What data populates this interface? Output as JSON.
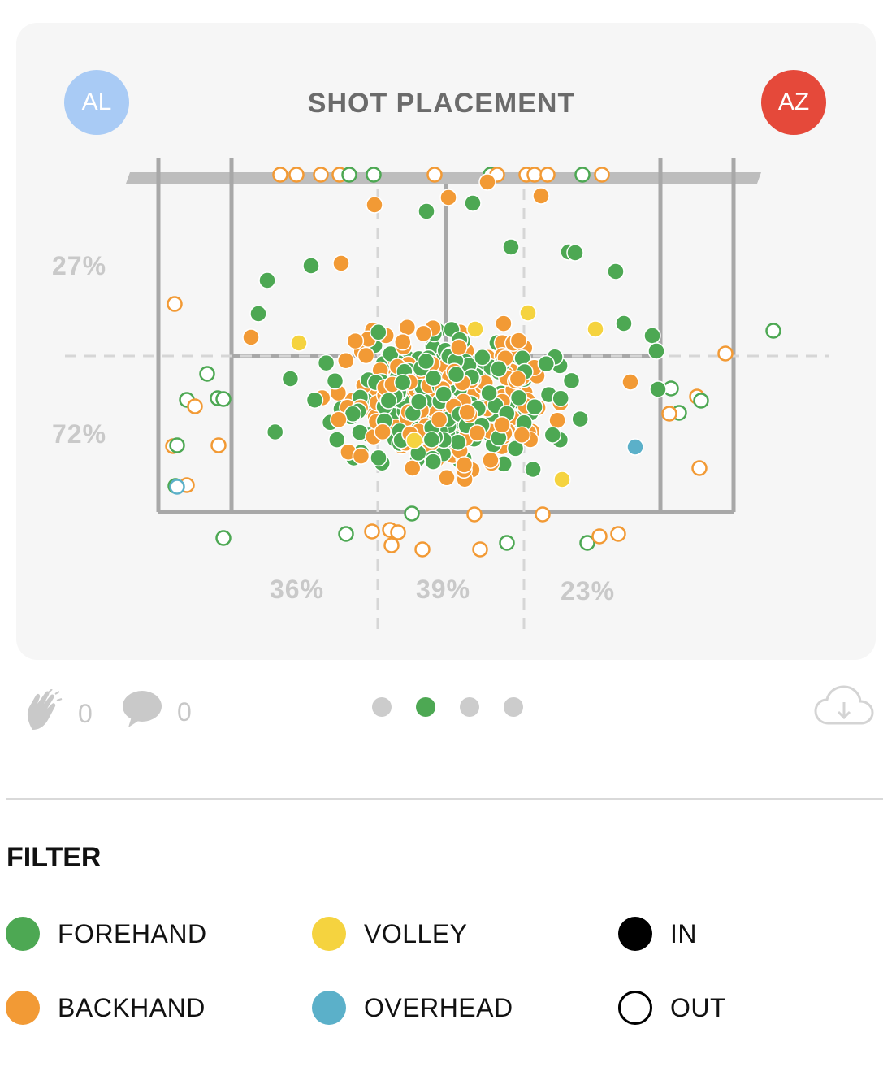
{
  "header": {
    "title": "SHOT PLACEMENT",
    "left_player": "AL",
    "right_player": "AZ",
    "left_color": "#a9cbf5",
    "right_color": "#e5493a"
  },
  "court": {
    "depth_percentages": [
      "27%",
      "72%"
    ],
    "width_percentages": [
      "36%",
      "39%",
      "23%"
    ]
  },
  "social": {
    "likes_icon": "clap-icon",
    "likes_count": "0",
    "comments_icon": "speech-bubble-icon",
    "comments_count": "0",
    "download_icon": "cloud-download-icon"
  },
  "pagination": {
    "pages": 4,
    "active_index": 1
  },
  "filter": {
    "title": "FILTER",
    "items": [
      {
        "label": "FOREHAND",
        "color": "#4da853",
        "style": "filled"
      },
      {
        "label": "VOLLEY",
        "color": "#f5d33f",
        "style": "filled"
      },
      {
        "label": "IN",
        "color": "#000000",
        "style": "filled"
      },
      {
        "label": "BACKHAND",
        "color": "#f29a35",
        "style": "filled"
      },
      {
        "label": "OVERHEAD",
        "color": "#5bb0c9",
        "style": "filled"
      },
      {
        "label": "OUT",
        "color": "#000000",
        "style": "outline"
      }
    ]
  },
  "colors": {
    "forehand": "#4da853",
    "backhand": "#f29a35",
    "volley": "#f5d33f",
    "overhead": "#5bb0c9"
  }
}
